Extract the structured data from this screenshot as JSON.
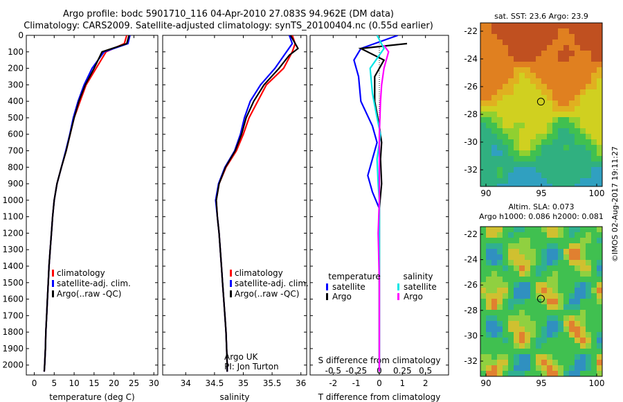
{
  "titles": {
    "line1": "Argo profile: bodc 5901710_116 04-Apr-2010 27.083S 94.962E (DM data)",
    "line2": "Climatology: CARS2009. Satellite-adjusted climatology: synTS_20100404.nc (0.55d earlier)"
  },
  "maps": {
    "sst_label": "sat. SST: 23.6 Argo: 23.9",
    "sla_label1": "Altim. SLA: 0.073",
    "sla_label2": "Argo h1000: 0.086 h2000: 0.081",
    "credit": "©IMOS 02-Aug-2017 19:11:27",
    "xticks": [
      "90",
      "95",
      "100"
    ],
    "yticks": [
      "-22",
      "-24",
      "-26",
      "-28",
      "-30",
      "-32"
    ],
    "xrange": [
      89.5,
      100.5
    ],
    "yrange": [
      -21.4,
      -33.2
    ],
    "argo_position": {
      "lon": 94.962,
      "lat": -27.083
    },
    "colors": {
      "sst_warm": "#e08020",
      "sst_cool": "#20a0e0",
      "sla_base": "#40c040"
    }
  },
  "annotations": {
    "argo_group": "Argo UK",
    "pi": "PI: Jon Turton"
  },
  "colors": {
    "climatology": "#ff0000",
    "satellite": "#0000ff",
    "argo": "#000000",
    "sal_satellite": "#00e5e5",
    "sal_argo": "#ff00ff"
  },
  "chart_data": [
    {
      "type": "line",
      "xlabel": "temperature (deg C)",
      "xticks": [
        0,
        5,
        10,
        15,
        20,
        25,
        30
      ],
      "xlim": [
        -2,
        31
      ],
      "ylim": [
        2060,
        0
      ],
      "yticks": [
        0,
        100,
        200,
        300,
        400,
        500,
        600,
        700,
        800,
        900,
        1000,
        1100,
        1200,
        1300,
        1400,
        1500,
        1600,
        1700,
        1800,
        1900,
        2000
      ],
      "legend": [
        "climatology",
        "satellite-adj. clim.",
        "Argo(..raw -QC)"
      ],
      "series": [
        {
          "name": "climatology",
          "color": "#ff0000",
          "points": [
            [
              23.2,
              0
            ],
            [
              22.6,
              50
            ],
            [
              18,
              100
            ],
            [
              15.5,
              200
            ],
            [
              13,
              300
            ],
            [
              11.5,
              400
            ],
            [
              10,
              500
            ],
            [
              9,
              600
            ],
            [
              8,
              700
            ],
            [
              6.8,
              800
            ],
            [
              5.7,
              900
            ],
            [
              5,
              1000
            ],
            [
              4.6,
              1100
            ],
            [
              4.3,
              1200
            ],
            [
              4,
              1300
            ],
            [
              3.7,
              1400
            ],
            [
              3.5,
              1500
            ],
            [
              3.3,
              1600
            ],
            [
              3.1,
              1700
            ],
            [
              2.9,
              1800
            ],
            [
              2.8,
              1900
            ],
            [
              2.6,
              2000
            ],
            [
              2.5,
              2040
            ]
          ]
        },
        {
          "name": "satellite-adj. clim.",
          "color": "#0000ff",
          "points": [
            [
              24,
              0
            ],
            [
              23.5,
              50
            ],
            [
              17.5,
              100
            ],
            [
              14.5,
              200
            ],
            [
              12.5,
              300
            ],
            [
              11,
              400
            ],
            [
              9.8,
              500
            ],
            [
              8.9,
              600
            ],
            [
              7.9,
              700
            ],
            [
              6.8,
              800
            ],
            [
              5.7,
              900
            ],
            [
              5,
              1000
            ],
            [
              4.6,
              1100
            ],
            [
              4.3,
              1200
            ],
            [
              4,
              1300
            ],
            [
              3.7,
              1400
            ],
            [
              3.5,
              1500
            ],
            [
              3.3,
              1600
            ],
            [
              3.1,
              1700
            ],
            [
              2.9,
              1800
            ],
            [
              2.8,
              1900
            ],
            [
              2.6,
              2000
            ],
            [
              2.5,
              2040
            ]
          ]
        },
        {
          "name": "Argo(..raw -QC)",
          "color": "#000000",
          "points": [
            [
              23.8,
              0
            ],
            [
              23.2,
              50
            ],
            [
              17,
              100
            ],
            [
              15,
              200
            ],
            [
              12.8,
              300
            ],
            [
              11.2,
              400
            ],
            [
              10,
              500
            ],
            [
              9,
              600
            ],
            [
              8,
              700
            ],
            [
              6.8,
              800
            ],
            [
              5.7,
              900
            ],
            [
              5,
              1000
            ],
            [
              4.6,
              1100
            ],
            [
              4.3,
              1200
            ],
            [
              4,
              1300
            ],
            [
              3.7,
              1400
            ],
            [
              3.5,
              1500
            ],
            [
              3.3,
              1600
            ],
            [
              3.1,
              1700
            ],
            [
              2.9,
              1800
            ],
            [
              2.8,
              1900
            ],
            [
              2.6,
              2000
            ],
            [
              2.5,
              2040
            ]
          ]
        }
      ]
    },
    {
      "type": "line",
      "xlabel": "salinity",
      "xticks": [
        34,
        34.5,
        35,
        35.5,
        36
      ],
      "xlim": [
        33.6,
        36.1
      ],
      "ylim": [
        2060,
        0
      ],
      "legend": [
        "climatology",
        "satellite-adj. clim.",
        "Argo(..raw -QC)"
      ],
      "series": [
        {
          "name": "climatology",
          "color": "#ff0000",
          "points": [
            [
              35.85,
              0
            ],
            [
              35.9,
              50
            ],
            [
              35.85,
              100
            ],
            [
              35.7,
              200
            ],
            [
              35.4,
              300
            ],
            [
              35.25,
              400
            ],
            [
              35.1,
              500
            ],
            [
              35,
              600
            ],
            [
              34.88,
              700
            ],
            [
              34.7,
              800
            ],
            [
              34.58,
              900
            ],
            [
              34.53,
              1000
            ],
            [
              34.55,
              1100
            ],
            [
              34.58,
              1200
            ],
            [
              34.6,
              1300
            ],
            [
              34.62,
              1400
            ],
            [
              34.64,
              1500
            ],
            [
              34.66,
              1600
            ],
            [
              34.68,
              1700
            ],
            [
              34.7,
              1800
            ],
            [
              34.71,
              1900
            ],
            [
              34.72,
              2000
            ],
            [
              34.72,
              2040
            ]
          ]
        },
        {
          "name": "satellite-adj. clim.",
          "color": "#0000ff",
          "points": [
            [
              35.8,
              0
            ],
            [
              35.85,
              50
            ],
            [
              35.75,
              100
            ],
            [
              35.55,
              200
            ],
            [
              35.3,
              300
            ],
            [
              35.12,
              400
            ],
            [
              35.02,
              500
            ],
            [
              34.95,
              600
            ],
            [
              34.85,
              700
            ],
            [
              34.68,
              800
            ],
            [
              34.57,
              900
            ],
            [
              34.52,
              1000
            ],
            [
              34.55,
              1100
            ],
            [
              34.58,
              1200
            ],
            [
              34.6,
              1300
            ],
            [
              34.62,
              1400
            ],
            [
              34.64,
              1500
            ],
            [
              34.66,
              1600
            ],
            [
              34.68,
              1700
            ],
            [
              34.7,
              1800
            ],
            [
              34.71,
              1900
            ],
            [
              34.72,
              2000
            ],
            [
              34.72,
              2040
            ]
          ]
        },
        {
          "name": "Argo(..raw -QC)",
          "color": "#000000",
          "points": [
            [
              35.82,
              0
            ],
            [
              35.95,
              80
            ],
            [
              35.8,
              120
            ],
            [
              35.62,
              200
            ],
            [
              35.36,
              300
            ],
            [
              35.18,
              400
            ],
            [
              35.05,
              500
            ],
            [
              34.97,
              600
            ],
            [
              34.86,
              700
            ],
            [
              34.69,
              800
            ],
            [
              34.58,
              900
            ],
            [
              34.53,
              1000
            ],
            [
              34.55,
              1100
            ],
            [
              34.58,
              1200
            ],
            [
              34.6,
              1300
            ],
            [
              34.62,
              1400
            ],
            [
              34.64,
              1500
            ],
            [
              34.66,
              1600
            ],
            [
              34.68,
              1700
            ],
            [
              34.7,
              1800
            ],
            [
              34.71,
              1900
            ],
            [
              34.72,
              2000
            ],
            [
              34.72,
              2040
            ]
          ]
        }
      ]
    },
    {
      "type": "line",
      "xlabel": "T difference from climatology",
      "x2label": "S difference from climatology",
      "xticks": [
        -2,
        -1,
        0,
        1,
        2
      ],
      "x2ticks": [
        -0.5,
        -0.25,
        0,
        0.25,
        0.5
      ],
      "x2tick_labels": [
        "-0.5",
        "-0.25",
        "0",
        "0.25",
        "0.5"
      ],
      "xlim": [
        -3,
        3
      ],
      "ylim": [
        2060,
        0
      ],
      "legend_headers": [
        "temperature",
        "salinity"
      ],
      "legend": [
        "satellite",
        "Argo",
        "satellite",
        "Argo"
      ],
      "series": [
        {
          "name": "satellite",
          "group": "temperature",
          "color": "#0000ff",
          "points": [
            [
              0.8,
              0
            ],
            [
              -0.8,
              80
            ],
            [
              -1.1,
              150
            ],
            [
              -0.9,
              250
            ],
            [
              -0.8,
              400
            ],
            [
              -0.3,
              550
            ],
            [
              -0.1,
              650
            ],
            [
              -0.3,
              750
            ],
            [
              -0.5,
              850
            ],
            [
              -0.3,
              950
            ],
            [
              0,
              1050
            ],
            [
              0,
              1200
            ],
            [
              0,
              1400
            ],
            [
              0,
              1700
            ],
            [
              0,
              2040
            ]
          ]
        },
        {
          "name": "Argo",
          "group": "temperature",
          "color": "#000000",
          "points": [
            [
              1.2,
              50
            ],
            [
              -0.8,
              80
            ],
            [
              0.2,
              150
            ],
            [
              -0.2,
              250
            ],
            [
              -0.2,
              400
            ],
            [
              0,
              550
            ],
            [
              0.1,
              650
            ],
            [
              0.05,
              750
            ],
            [
              0.1,
              900
            ],
            [
              0,
              1050
            ],
            [
              0,
              1300
            ],
            [
              0,
              1600
            ],
            [
              0,
              2040
            ]
          ]
        },
        {
          "name": "satellite",
          "group": "salinity",
          "color": "#00e5e5",
          "points": [
            [
              -0.1,
              0
            ],
            [
              0.2,
              80
            ],
            [
              -0.4,
              200
            ],
            [
              -0.3,
              350
            ],
            [
              -0.1,
              500
            ],
            [
              0.05,
              600
            ],
            [
              -0.1,
              750
            ],
            [
              -0.05,
              900
            ],
            [
              0,
              1000
            ],
            [
              0,
              1500
            ],
            [
              0,
              2040
            ]
          ]
        },
        {
          "name": "Argo",
          "group": "salinity",
          "color": "#ff00ff",
          "points": [
            [
              0.2,
              60
            ],
            [
              0.4,
              100
            ],
            [
              0.2,
              200
            ],
            [
              0.1,
              300
            ],
            [
              0.05,
              400
            ],
            [
              0,
              600
            ],
            [
              0,
              1000
            ],
            [
              -0.05,
              1200
            ],
            [
              0,
              1500
            ],
            [
              0,
              2040
            ]
          ]
        }
      ]
    }
  ]
}
